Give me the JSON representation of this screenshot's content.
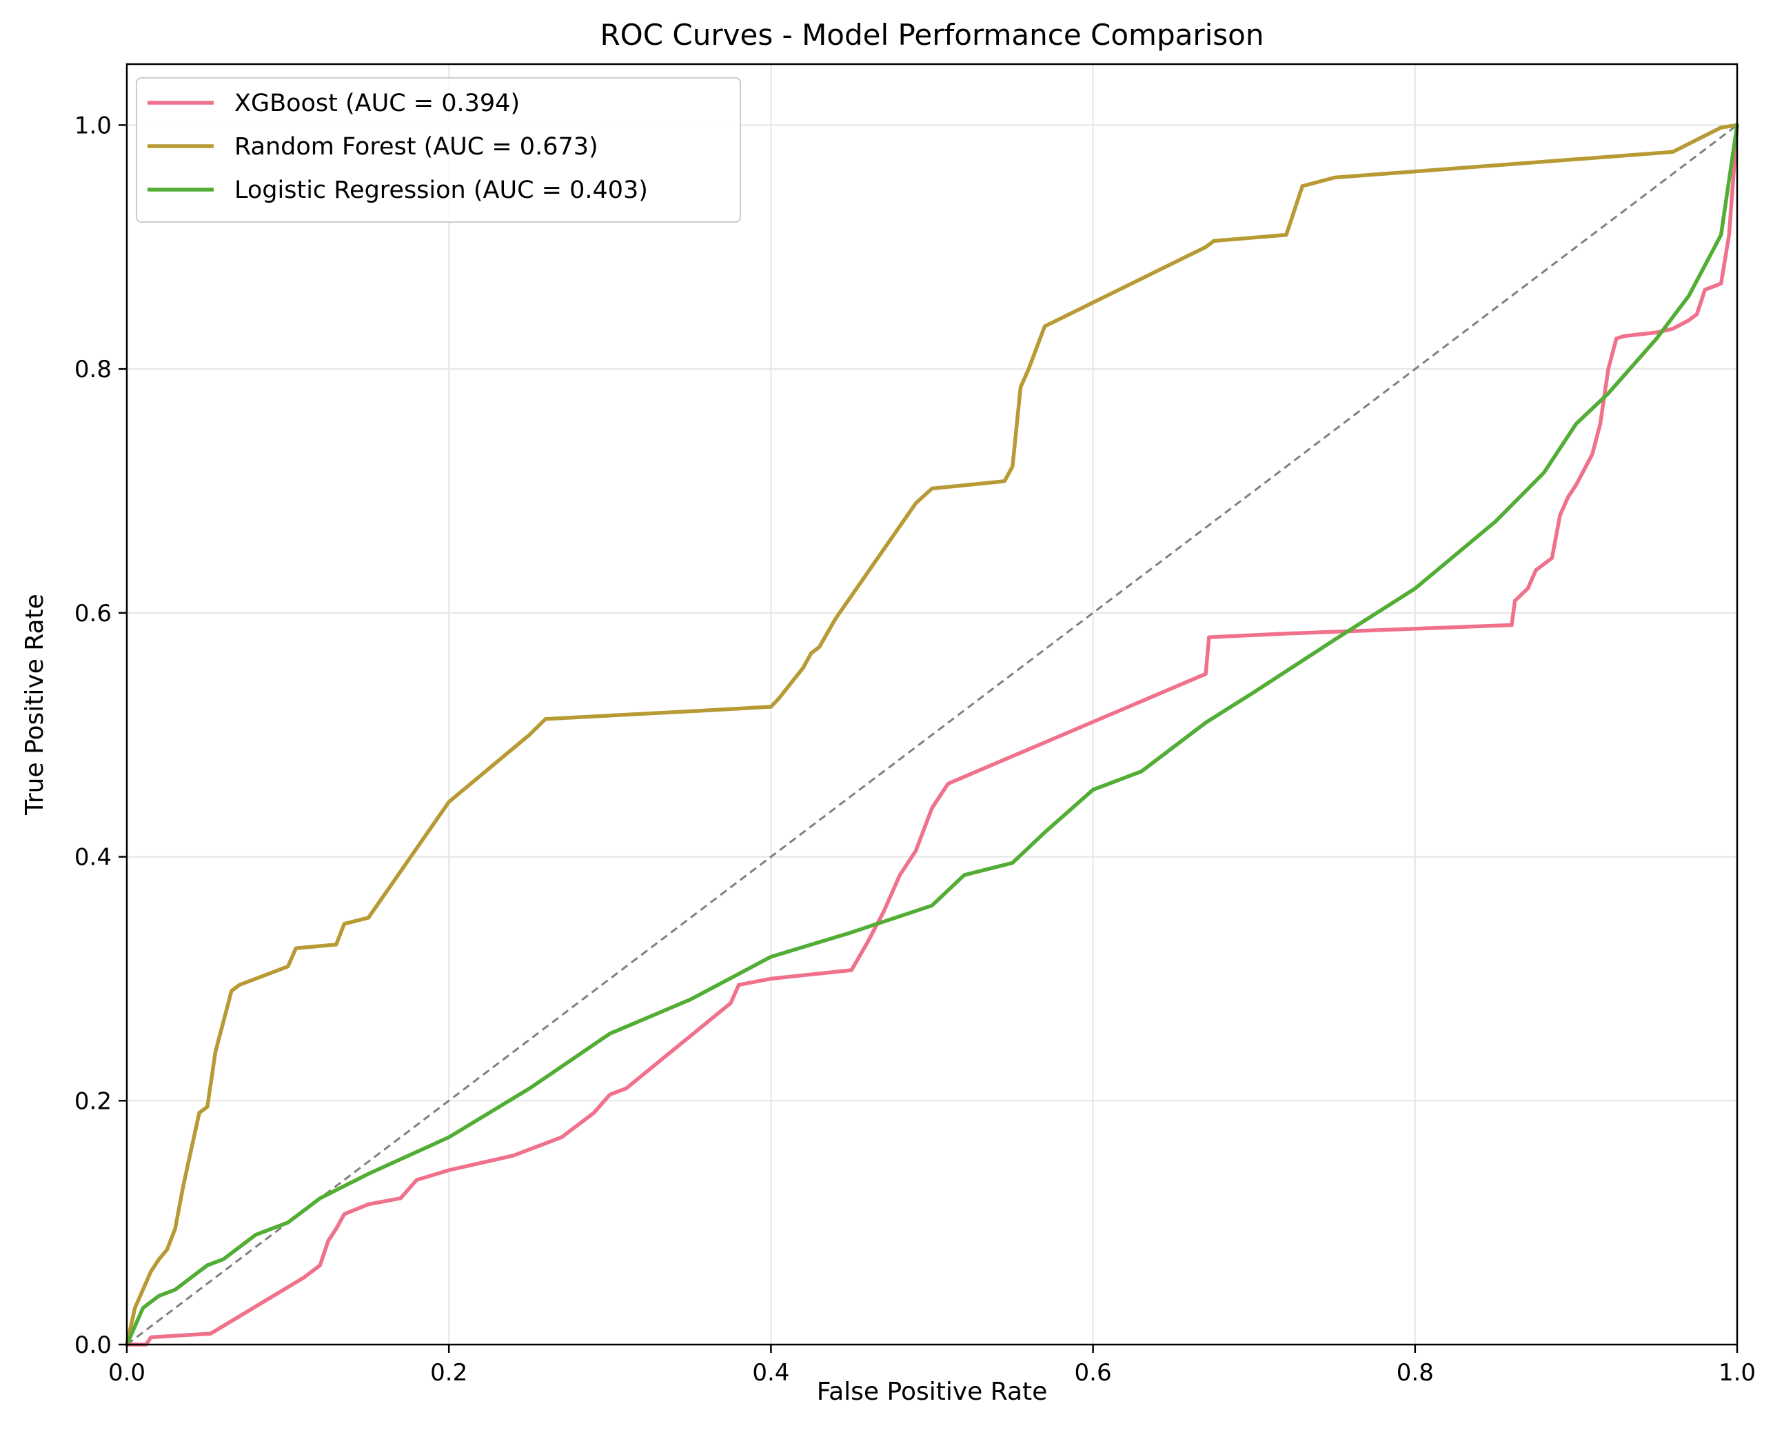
{
  "chart_data": {
    "type": "line",
    "title": "ROC Curves - Model Performance Comparison",
    "xlabel": "False Positive Rate",
    "ylabel": "True Positive Rate",
    "xlim": [
      0,
      1
    ],
    "ylim": [
      0,
      1.05
    ],
    "xticks": [
      0.0,
      0.2,
      0.4,
      0.6,
      0.8,
      1.0
    ],
    "yticks": [
      0.0,
      0.2,
      0.4,
      0.6,
      0.8,
      1.0
    ],
    "xtick_labels": [
      "0.0",
      "0.2",
      "0.4",
      "0.6",
      "0.8",
      "1.0"
    ],
    "ytick_labels": [
      "0.0",
      "0.2",
      "0.4",
      "0.6",
      "0.8",
      "1.0"
    ],
    "grid": true,
    "legend_position": "upper-left",
    "diagonal": {
      "x": [
        0,
        1
      ],
      "y": [
        0,
        1
      ],
      "color": "#808080",
      "style": "dashed"
    },
    "series": [
      {
        "name": "XGBoost (AUC = 0.394)",
        "color": "#f0718b",
        "x": [
          0,
          0.012,
          0.015,
          0.052,
          0.11,
          0.12,
          0.125,
          0.13,
          0.135,
          0.15,
          0.17,
          0.18,
          0.2,
          0.24,
          0.25,
          0.26,
          0.27,
          0.28,
          0.29,
          0.3,
          0.31,
          0.375,
          0.38,
          0.4,
          0.45,
          0.46,
          0.47,
          0.48,
          0.49,
          0.5,
          0.51,
          0.67,
          0.672,
          0.72,
          0.86,
          0.862,
          0.87,
          0.875,
          0.88,
          0.885,
          0.89,
          0.895,
          0.9,
          0.91,
          0.915,
          0.92,
          0.925,
          0.93,
          0.95,
          0.96,
          0.97,
          0.975,
          0.98,
          0.99,
          0.995,
          1.0
        ],
        "y": [
          0,
          0,
          0.006,
          0.009,
          0.055,
          0.065,
          0.085,
          0.095,
          0.107,
          0.115,
          0.12,
          0.135,
          0.143,
          0.155,
          0.16,
          0.165,
          0.17,
          0.18,
          0.19,
          0.205,
          0.21,
          0.28,
          0.295,
          0.3,
          0.307,
          0.33,
          0.355,
          0.385,
          0.405,
          0.44,
          0.46,
          0.55,
          0.58,
          0.583,
          0.59,
          0.61,
          0.62,
          0.635,
          0.64,
          0.645,
          0.68,
          0.695,
          0.705,
          0.73,
          0.755,
          0.8,
          0.825,
          0.827,
          0.83,
          0.833,
          0.84,
          0.845,
          0.865,
          0.87,
          0.91,
          1.0
        ]
      },
      {
        "name": "Random Forest (AUC = 0.673)",
        "color": "#b89a35",
        "x": [
          0,
          0.005,
          0.01,
          0.015,
          0.02,
          0.025,
          0.03,
          0.035,
          0.04,
          0.045,
          0.05,
          0.055,
          0.06,
          0.065,
          0.07,
          0.08,
          0.1,
          0.105,
          0.13,
          0.135,
          0.15,
          0.2,
          0.25,
          0.26,
          0.36,
          0.4,
          0.405,
          0.42,
          0.425,
          0.43,
          0.44,
          0.49,
          0.5,
          0.545,
          0.55,
          0.555,
          0.56,
          0.57,
          0.67,
          0.675,
          0.72,
          0.73,
          0.75,
          0.96,
          0.99,
          1.0
        ],
        "y": [
          0,
          0.03,
          0.045,
          0.06,
          0.07,
          0.078,
          0.095,
          0.13,
          0.16,
          0.19,
          0.195,
          0.24,
          0.265,
          0.29,
          0.295,
          0.3,
          0.31,
          0.325,
          0.328,
          0.345,
          0.35,
          0.445,
          0.5,
          0.513,
          0.52,
          0.523,
          0.53,
          0.555,
          0.567,
          0.572,
          0.595,
          0.69,
          0.702,
          0.708,
          0.72,
          0.785,
          0.8,
          0.835,
          0.9,
          0.905,
          0.91,
          0.95,
          0.957,
          0.978,
          0.998,
          1.0
        ]
      },
      {
        "name": "Logistic Regression (AUC = 0.403)",
        "color": "#52ad34",
        "x": [
          0,
          0.005,
          0.01,
          0.015,
          0.02,
          0.03,
          0.035,
          0.04,
          0.05,
          0.06,
          0.07,
          0.08,
          0.1,
          0.12,
          0.15,
          0.2,
          0.25,
          0.3,
          0.35,
          0.4,
          0.45,
          0.5,
          0.52,
          0.55,
          0.57,
          0.6,
          0.63,
          0.67,
          0.7,
          0.75,
          0.8,
          0.85,
          0.88,
          0.9,
          0.92,
          0.95,
          0.97,
          0.98,
          0.99,
          1.0
        ],
        "y": [
          0,
          0.015,
          0.03,
          0.035,
          0.04,
          0.045,
          0.05,
          0.055,
          0.065,
          0.07,
          0.08,
          0.09,
          0.1,
          0.12,
          0.14,
          0.17,
          0.21,
          0.255,
          0.283,
          0.318,
          0.338,
          0.36,
          0.385,
          0.395,
          0.42,
          0.455,
          0.47,
          0.51,
          0.535,
          0.578,
          0.62,
          0.675,
          0.715,
          0.755,
          0.78,
          0.825,
          0.86,
          0.885,
          0.91,
          1.0
        ]
      }
    ]
  }
}
